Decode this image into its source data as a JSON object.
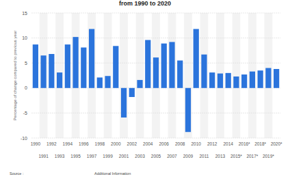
{
  "chart_data": {
    "type": "bar",
    "title": "from 1990 to 2020",
    "y_label": "Percentage of change compared to previous year",
    "annotations": [
      "Source :",
      "Additional Information"
    ],
    "categories": [
      "1990",
      "1991",
      "1992",
      "1993",
      "1994",
      "1995",
      "1996",
      "1997",
      "1998",
      "1999",
      "2000",
      "2001",
      "2002",
      "2003",
      "2004",
      "2005",
      "2006",
      "2007",
      "2008",
      "2009",
      "2010",
      "2011",
      "2012",
      "2013",
      "2014",
      "2015*",
      "2016*",
      "2017*",
      "2018*",
      "2019*",
      "2020*"
    ],
    "values": [
      8.7,
      6.5,
      6.8,
      3.1,
      8.7,
      10.2,
      8.1,
      11.8,
      2.1,
      2.4,
      8.4,
      -5.9,
      -1.8,
      1.6,
      9.6,
      6.1,
      8.9,
      9.2,
      5.5,
      -8.8,
      11.8,
      6.7,
      3.1,
      2.9,
      3.0,
      2.3,
      2.7,
      3.3,
      3.5,
      4.0,
      3.8
    ],
    "color": "#2b74dc",
    "ylim": [
      -10,
      15
    ],
    "yticks": [
      -10,
      -5,
      0,
      5,
      10,
      15
    ],
    "grid": true
  }
}
